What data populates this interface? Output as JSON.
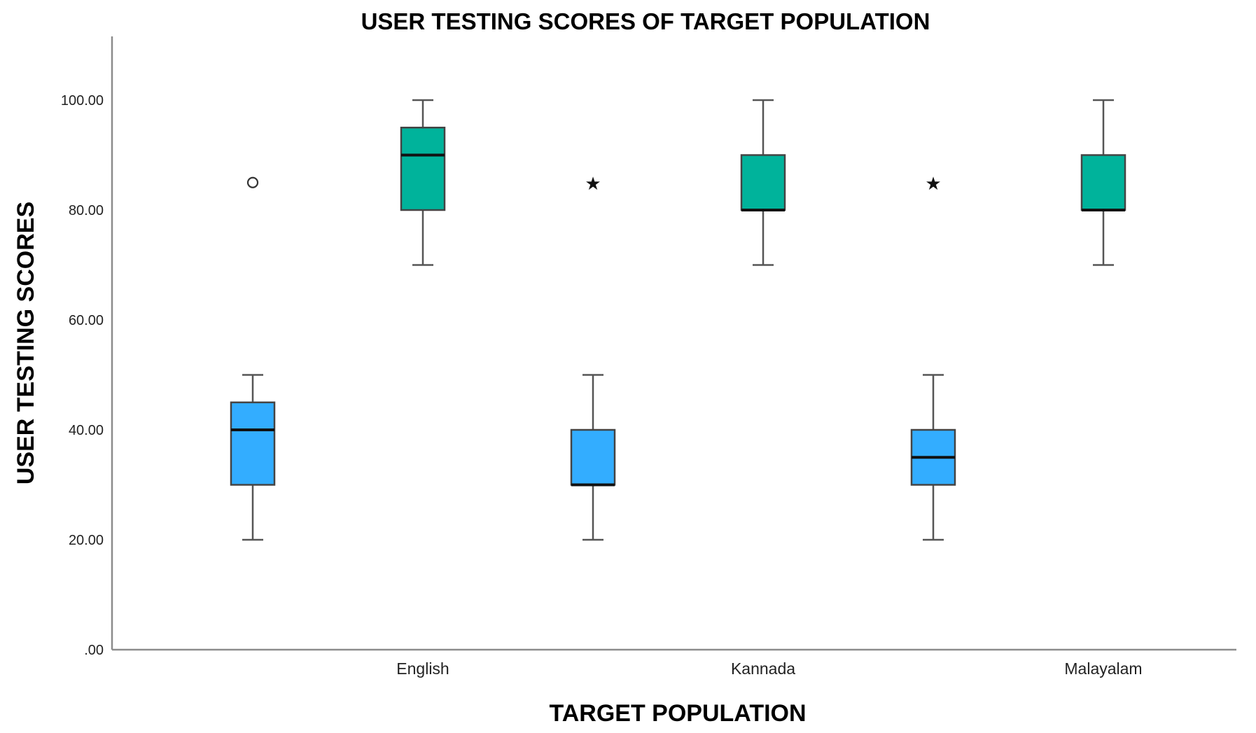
{
  "chart_data": {
    "type": "boxplot",
    "title": "USER TESTING SCORES OF  TARGET POPULATION",
    "xlabel": "TARGET POPULATION",
    "ylabel": "USER TESTING SCORES",
    "ylim": [
      0,
      110
    ],
    "yticks": [
      {
        "value": 0,
        "label": ".00"
      },
      {
        "value": 20,
        "label": "20.00"
      },
      {
        "value": 40,
        "label": "40.00"
      },
      {
        "value": 60,
        "label": "60.00"
      },
      {
        "value": 80,
        "label": "80.00"
      },
      {
        "value": 100,
        "label": "100.00"
      }
    ],
    "categories": [
      "English",
      "Kannada",
      "Malayalam"
    ],
    "colors": {
      "blue": "#33adff",
      "teal": "#00b39b"
    },
    "boxes": [
      {
        "category": "English",
        "side": "left",
        "color": "blue",
        "min": 20,
        "q1": 30,
        "median": 40,
        "q3": 45,
        "max": 50,
        "outliers": [
          {
            "value": 85,
            "marker": "circle"
          }
        ]
      },
      {
        "category": "English",
        "side": "right",
        "color": "teal",
        "min": 70,
        "q1": 80,
        "median": 90,
        "q3": 95,
        "max": 100,
        "outliers": []
      },
      {
        "category": "Kannada",
        "side": "left",
        "color": "blue",
        "min": 20,
        "q1": 30,
        "median": 30,
        "q3": 40,
        "max": 50,
        "outliers": [
          {
            "value": 85,
            "marker": "star"
          }
        ]
      },
      {
        "category": "Kannada",
        "side": "right",
        "color": "teal",
        "min": 70,
        "q1": 80,
        "median": 80,
        "q3": 90,
        "max": 100,
        "outliers": []
      },
      {
        "category": "Malayalam",
        "side": "left",
        "color": "blue",
        "min": 20,
        "q1": 30,
        "median": 35,
        "q3": 40,
        "max": 50,
        "outliers": [
          {
            "value": 85,
            "marker": "star"
          }
        ]
      },
      {
        "category": "Malayalam",
        "side": "right",
        "color": "teal",
        "min": 70,
        "q1": 80,
        "median": 80,
        "q3": 90,
        "max": 100,
        "outliers": []
      }
    ]
  }
}
